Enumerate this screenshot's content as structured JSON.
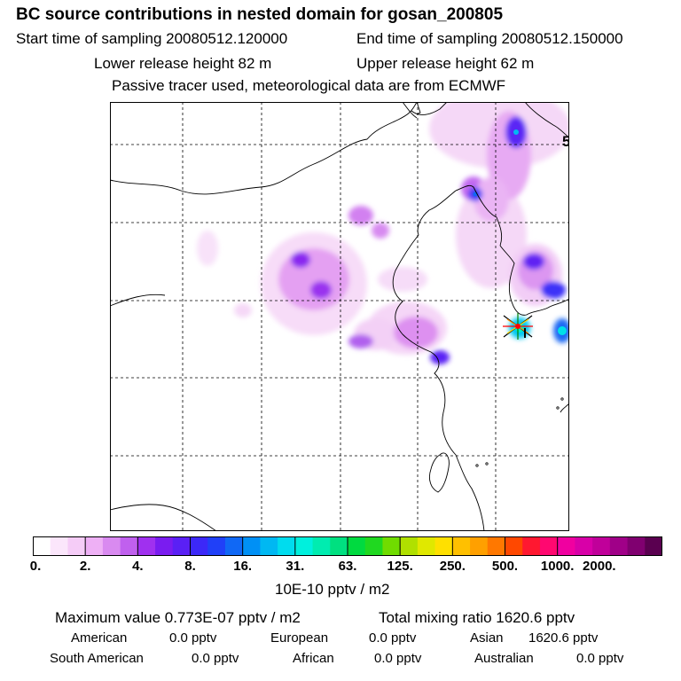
{
  "header": {
    "title": "BC  source contributions in nested domain for gosan_200805",
    "start_label": "Start time of sampling 20080512.120000",
    "end_label": "End time of sampling 20080512.150000",
    "lower_release": "Lower release height   82 m",
    "upper_release": "Upper release height   62 m",
    "tracer_note": "Passive tracer used, meteorological data are from ECMWF"
  },
  "map": {
    "edge_label": "5"
  },
  "colorbar": {
    "ticks": [
      "0.",
      "2.",
      "4.",
      "8.",
      "16.",
      "31.",
      "63.",
      "125.",
      "250.",
      "500.",
      "1000.",
      "2000."
    ],
    "unit": "10E-10 pptv / m2",
    "colors": [
      "#ffffff",
      "#fbe6fb",
      "#f5ccf7",
      "#eeb0f5",
      "#d98af0",
      "#c060ee",
      "#a030ef",
      "#7a1cf0",
      "#5a20f5",
      "#3c28f8",
      "#2040f8",
      "#1068f5",
      "#0090f5",
      "#00b8f2",
      "#00dcee",
      "#00f0dd",
      "#00ecb0",
      "#00e080",
      "#00da40",
      "#20d820",
      "#70dc00",
      "#b0e000",
      "#e0e800",
      "#ffe000",
      "#ffc000",
      "#ffa000",
      "#ff7800",
      "#ff4800",
      "#ff1830",
      "#ff0870",
      "#f000a0",
      "#d800a8",
      "#c0009a",
      "#a00088",
      "#800070",
      "#5a0050"
    ],
    "colors_per_tick": 3
  },
  "footer": {
    "max_label": "Maximum value  0.773E-07 pptv / m2",
    "total_label": "Total mixing ratio     1620.6 pptv",
    "american": "American",
    "american_val": "0.0 pptv",
    "european": "European",
    "european_val": "0.0 pptv",
    "asian": "Asian",
    "asian_val": "1620.6 pptv",
    "south_american": "South American",
    "south_american_val": "0.0 pptv",
    "african": "African",
    "african_val": "0.0 pptv",
    "australian": "Australian",
    "australian_val": "0.0 pptv"
  }
}
